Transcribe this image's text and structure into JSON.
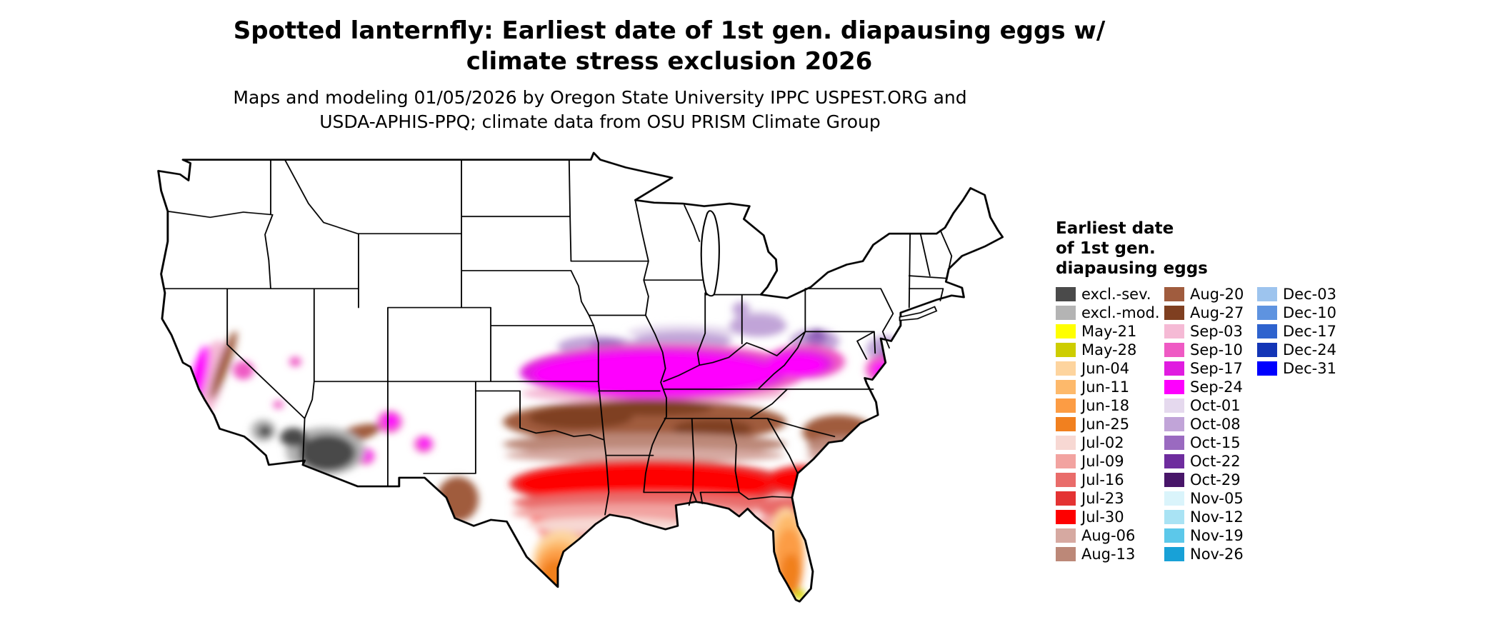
{
  "title": {
    "line1": "Spotted lanternfly: Earliest date of 1st gen. diapausing eggs w/",
    "line2": "climate stress exclusion 2026"
  },
  "subtitle": {
    "line1": "Maps and modeling 01/05/2026 by Oregon State University IPPC USPEST.ORG and",
    "line2": "USDA-APHIS-PPQ; climate data from OSU PRISM Climate Group"
  },
  "legend": {
    "title_lines": [
      "Earliest date",
      "of 1st gen.",
      "diapausing eggs"
    ],
    "columns": [
      [
        {
          "label": "excl.-sev.",
          "color": "#4a4a4a"
        },
        {
          "label": "excl.-mod.",
          "color": "#b4b4b4"
        },
        {
          "label": "May-21",
          "color": "#ffff00"
        },
        {
          "label": "May-28",
          "color": "#cdcd00"
        },
        {
          "label": "Jun-04",
          "color": "#fdd49e"
        },
        {
          "label": "Jun-11",
          "color": "#fdb96b"
        },
        {
          "label": "Jun-18",
          "color": "#fc9c44"
        },
        {
          "label": "Jun-25",
          "color": "#f1801f"
        },
        {
          "label": "Jul-02",
          "color": "#f7d8d3"
        },
        {
          "label": "Jul-09",
          "color": "#f2a3a0"
        },
        {
          "label": "Jul-16",
          "color": "#e96c6a"
        },
        {
          "label": "Jul-23",
          "color": "#e43333"
        },
        {
          "label": "Jul-30",
          "color": "#fe0000"
        },
        {
          "label": "Aug-06",
          "color": "#d6a9a1"
        },
        {
          "label": "Aug-13",
          "color": "#bc8878"
        }
      ],
      [
        {
          "label": "Aug-20",
          "color": "#a05c3e"
        },
        {
          "label": "Aug-27",
          "color": "#7f3f20"
        },
        {
          "label": "Sep-03",
          "color": "#f5bad5"
        },
        {
          "label": "Sep-10",
          "color": "#ef5ac4"
        },
        {
          "label": "Sep-17",
          "color": "#e01ce0"
        },
        {
          "label": "Sep-24",
          "color": "#fe00fe"
        },
        {
          "label": "Oct-01",
          "color": "#e5d9ee"
        },
        {
          "label": "Oct-08",
          "color": "#c1a4d8"
        },
        {
          "label": "Oct-15",
          "color": "#9a6ac0"
        },
        {
          "label": "Oct-22",
          "color": "#6e2c9e"
        },
        {
          "label": "Oct-29",
          "color": "#481669"
        },
        {
          "label": "Nov-05",
          "color": "#daf4fb"
        },
        {
          "label": "Nov-12",
          "color": "#a9e3f4"
        },
        {
          "label": "Nov-19",
          "color": "#5cc8ea"
        },
        {
          "label": "Nov-26",
          "color": "#18a1d7"
        }
      ],
      [
        {
          "label": "Dec-03",
          "color": "#9dc4ee"
        },
        {
          "label": "Dec-10",
          "color": "#5e93e0"
        },
        {
          "label": "Dec-17",
          "color": "#2e63ce"
        },
        {
          "label": "Dec-24",
          "color": "#1335b6"
        },
        {
          "label": "Dec-31",
          "color": "#0000fe"
        }
      ]
    ]
  }
}
